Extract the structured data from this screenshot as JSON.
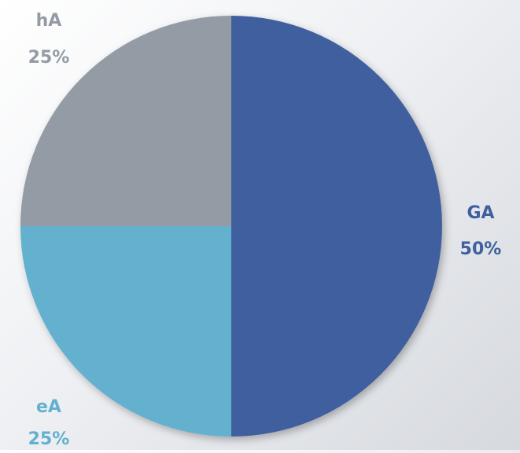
{
  "chart_data": {
    "type": "pie",
    "slices": [
      {
        "label": "GA",
        "value": 50,
        "percent_label": "50%",
        "color": "#3f5f9e"
      },
      {
        "label": "eA",
        "value": 25,
        "percent_label": "25%",
        "color": "#63b0cf"
      },
      {
        "label": "hA",
        "value": 25,
        "percent_label": "25%",
        "color": "#939ba5"
      }
    ],
    "start_angle_deg": 0,
    "direction": "clockwise",
    "legend": "none"
  }
}
